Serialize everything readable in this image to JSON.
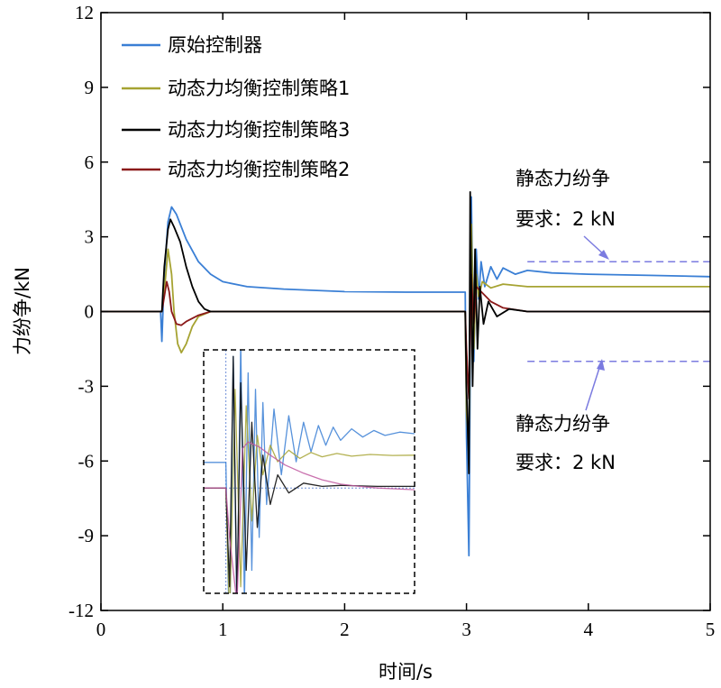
{
  "chart_data": {
    "type": "line",
    "title": "",
    "xlabel": "时间/s",
    "ylabel": "力纷争/kN",
    "xlim": [
      0,
      5
    ],
    "ylim": [
      -12,
      12
    ],
    "xticks": [
      0,
      1,
      2,
      3,
      4,
      5
    ],
    "yticks": [
      12,
      9,
      6,
      3,
      0,
      -3,
      -6,
      -9,
      -12
    ],
    "legend_position": "top-left",
    "series": [
      {
        "name": "原始控制器",
        "color": "#3a7fd5",
        "points": [
          [
            0,
            0
          ],
          [
            0.49,
            0
          ],
          [
            0.5,
            -1.2
          ],
          [
            0.52,
            1.5
          ],
          [
            0.55,
            3.6
          ],
          [
            0.58,
            4.2
          ],
          [
            0.62,
            3.9
          ],
          [
            0.7,
            2.9
          ],
          [
            0.8,
            2.0
          ],
          [
            0.9,
            1.5
          ],
          [
            1.0,
            1.2
          ],
          [
            1.2,
            1.0
          ],
          [
            1.5,
            0.9
          ],
          [
            2.0,
            0.8
          ],
          [
            2.5,
            0.78
          ],
          [
            2.99,
            0.78
          ],
          [
            3.0,
            -5
          ],
          [
            3.02,
            -9.8
          ],
          [
            3.04,
            4.6
          ],
          [
            3.06,
            -2
          ],
          [
            3.08,
            2.5
          ],
          [
            3.1,
            0.5
          ],
          [
            3.12,
            2.0
          ],
          [
            3.15,
            1.0
          ],
          [
            3.2,
            1.8
          ],
          [
            3.25,
            1.3
          ],
          [
            3.3,
            1.75
          ],
          [
            3.4,
            1.5
          ],
          [
            3.5,
            1.65
          ],
          [
            3.7,
            1.55
          ],
          [
            4.0,
            1.5
          ],
          [
            4.5,
            1.45
          ],
          [
            5.0,
            1.4
          ]
        ]
      },
      {
        "name": "动态力均衡控制策略1",
        "color": "#a6a332",
        "points": [
          [
            0,
            0
          ],
          [
            0.5,
            0
          ],
          [
            0.52,
            0.8
          ],
          [
            0.55,
            2.5
          ],
          [
            0.58,
            1.5
          ],
          [
            0.6,
            0
          ],
          [
            0.63,
            -1.3
          ],
          [
            0.66,
            -1.65
          ],
          [
            0.7,
            -1.3
          ],
          [
            0.75,
            -0.6
          ],
          [
            0.8,
            -0.2
          ],
          [
            0.9,
            0
          ],
          [
            2.99,
            0
          ],
          [
            3.0,
            -4
          ],
          [
            3.02,
            -5.5
          ],
          [
            3.04,
            3.5
          ],
          [
            3.06,
            -1.5
          ],
          [
            3.08,
            1.5
          ],
          [
            3.1,
            0.6
          ],
          [
            3.13,
            1.2
          ],
          [
            3.2,
            0.95
          ],
          [
            3.3,
            1.1
          ],
          [
            3.5,
            1.0
          ],
          [
            5.0,
            1.0
          ]
        ]
      },
      {
        "name": "动态力均衡控制策略3",
        "color": "#000000",
        "points": [
          [
            0,
            0
          ],
          [
            0.5,
            0
          ],
          [
            0.52,
            1.8
          ],
          [
            0.55,
            3.3
          ],
          [
            0.57,
            3.7
          ],
          [
            0.6,
            3.4
          ],
          [
            0.65,
            2.8
          ],
          [
            0.7,
            1.8
          ],
          [
            0.75,
            1.0
          ],
          [
            0.8,
            0.4
          ],
          [
            0.85,
            0.1
          ],
          [
            0.9,
            0
          ],
          [
            2.99,
            0
          ],
          [
            3.0,
            -3
          ],
          [
            3.02,
            -6.5
          ],
          [
            3.03,
            4.8
          ],
          [
            3.05,
            -3
          ],
          [
            3.07,
            2.5
          ],
          [
            3.09,
            -1.5
          ],
          [
            3.11,
            1.0
          ],
          [
            3.14,
            -0.5
          ],
          [
            3.18,
            0.4
          ],
          [
            3.25,
            -0.2
          ],
          [
            3.35,
            0.1
          ],
          [
            3.5,
            0
          ],
          [
            5.0,
            0
          ]
        ]
      },
      {
        "name": "动态力均衡控制策略2",
        "color": "#8b1a1a",
        "points": [
          [
            0,
            0
          ],
          [
            0.5,
            0
          ],
          [
            0.52,
            0.6
          ],
          [
            0.54,
            1.2
          ],
          [
            0.56,
            0.8
          ],
          [
            0.58,
            0
          ],
          [
            0.62,
            -0.5
          ],
          [
            0.66,
            -0.55
          ],
          [
            0.7,
            -0.4
          ],
          [
            0.8,
            -0.15
          ],
          [
            0.9,
            0
          ],
          [
            2.99,
            0
          ],
          [
            3.0,
            -1.5
          ],
          [
            3.02,
            -3.5
          ],
          [
            3.04,
            1.5
          ],
          [
            3.06,
            -0.5
          ],
          [
            3.08,
            1.0
          ],
          [
            3.12,
            0.8
          ],
          [
            3.2,
            0.4
          ],
          [
            3.3,
            0.15
          ],
          [
            3.5,
            0
          ],
          [
            5.0,
            0
          ]
        ]
      }
    ],
    "reference_lines": [
      {
        "y": 2,
        "x_range": [
          3.5,
          5
        ],
        "color": "#7b7be0",
        "style": "dashed"
      },
      {
        "y": -2,
        "x_range": [
          3.5,
          5
        ],
        "color": "#7b7be0",
        "style": "dashed"
      }
    ],
    "annotations": [
      {
        "text_line1": "静态力纷争",
        "text_line2": "要求：2 kN",
        "target_y": 2,
        "position": "above"
      },
      {
        "text_line1": "静态力纷争",
        "text_line2": "要求：2 kN",
        "target_y": -2,
        "position": "below"
      }
    ],
    "inset": {
      "description": "zoomed view of response after t=3 s",
      "border": "dashed"
    }
  }
}
